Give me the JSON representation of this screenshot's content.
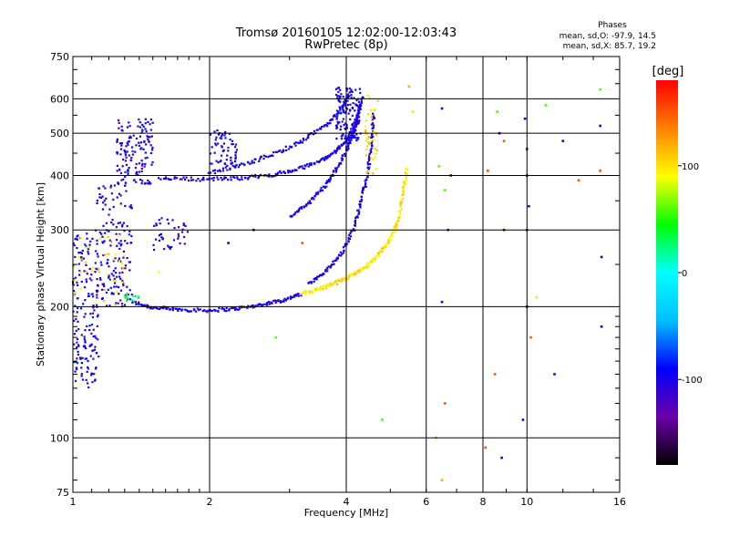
{
  "header": {
    "title": "Tromsø 20160105 12:02:00-12:03:43",
    "subtitle": "RwPretec (8p)"
  },
  "stats": {
    "heading": "Phases",
    "line_o": "mean, sd,O: -97.9, 14.5",
    "line_x": "mean, sd,X:  85.7, 19.2"
  },
  "colorbar": {
    "unit": "[deg]",
    "ticks": [
      {
        "value": 100,
        "label": "100"
      },
      {
        "value": 0,
        "label": "0"
      },
      {
        "value": -100,
        "label": "-100"
      }
    ],
    "range": [
      -180,
      180
    ],
    "palette": [
      "#000000",
      "#6a00a8",
      "#0000ff",
      "#00bfff",
      "#00ffff",
      "#00ff00",
      "#ffff00",
      "#ff8000",
      "#ff0000"
    ]
  },
  "chart_data": {
    "type": "scatter",
    "xlabel": "Frequency [MHz]",
    "ylabel": "Stationary phase Virtual Height [km]",
    "xscale": "log",
    "yscale": "log",
    "xlim": [
      1,
      16
    ],
    "ylim": [
      75,
      750
    ],
    "grid": true,
    "xticks": [
      {
        "value": 1,
        "label": "1"
      },
      {
        "value": 2,
        "label": "2"
      },
      {
        "value": 4,
        "label": "4"
      },
      {
        "value": 6,
        "label": "6"
      },
      {
        "value": 8,
        "label": "8"
      },
      {
        "value": 10,
        "label": "10"
      },
      {
        "value": 16,
        "label": "16"
      }
    ],
    "yticks": [
      {
        "value": 75,
        "label": "75"
      },
      {
        "value": 100,
        "label": "100"
      },
      {
        "value": 200,
        "label": "200"
      },
      {
        "value": 300,
        "label": "300"
      },
      {
        "value": 400,
        "label": "400"
      },
      {
        "value": 500,
        "label": "500"
      },
      {
        "value": 600,
        "label": "600"
      },
      {
        "value": 750,
        "label": "750"
      }
    ],
    "traces": [
      {
        "points": [
          [
            1.35,
            205
          ],
          [
            1.5,
            199
          ],
          [
            1.7,
            197
          ],
          [
            2.0,
            196
          ],
          [
            2.3,
            198
          ],
          [
            2.6,
            202
          ],
          [
            2.9,
            207
          ],
          [
            3.2,
            214
          ]
        ],
        "phase": -100
      },
      {
        "points": [
          [
            3.2,
            214
          ],
          [
            3.5,
            220
          ],
          [
            3.8,
            227
          ],
          [
            4.1,
            236
          ],
          [
            4.4,
            246
          ],
          [
            4.7,
            262
          ],
          [
            5.0,
            285
          ],
          [
            5.2,
            315
          ],
          [
            5.35,
            370
          ],
          [
            5.45,
            420
          ]
        ],
        "phase": 100
      },
      {
        "points": [
          [
            3.3,
            225
          ],
          [
            3.6,
            240
          ],
          [
            3.9,
            265
          ],
          [
            4.15,
            300
          ],
          [
            4.3,
            345
          ],
          [
            4.45,
            400
          ],
          [
            4.55,
            470
          ],
          [
            4.6,
            560
          ]
        ],
        "phase": -100
      },
      {
        "points": [
          [
            1.55,
            395
          ],
          [
            1.9,
            392
          ],
          [
            2.3,
            394
          ],
          [
            2.7,
            400
          ],
          [
            3.1,
            412
          ],
          [
            3.5,
            432
          ],
          [
            3.8,
            455
          ],
          [
            4.0,
            480
          ],
          [
            4.2,
            530
          ],
          [
            4.35,
            610
          ]
        ],
        "phase": -100
      },
      {
        "points": [
          [
            2.0,
            405
          ],
          [
            2.4,
            425
          ],
          [
            2.8,
            450
          ],
          [
            3.2,
            480
          ],
          [
            3.6,
            520
          ],
          [
            3.9,
            570
          ],
          [
            4.1,
            620
          ]
        ],
        "phase": -100
      },
      {
        "points": [
          [
            3.0,
            320
          ],
          [
            3.3,
            345
          ],
          [
            3.6,
            380
          ],
          [
            3.85,
            420
          ],
          [
            4.05,
            470
          ],
          [
            4.2,
            520
          ],
          [
            4.3,
            580
          ]
        ],
        "phase": -100
      }
    ],
    "clusters": [
      {
        "x": [
          1.0,
          1.14
        ],
        "y": [
          130,
          300
        ],
        "n": 170,
        "phase": -100
      },
      {
        "x": [
          1.12,
          1.35
        ],
        "y": [
          200,
          380
        ],
        "n": 160,
        "phase": -100
      },
      {
        "x": [
          1.25,
          1.5
        ],
        "y": [
          380,
          540
        ],
        "n": 140,
        "phase": -100
      },
      {
        "x": [
          1.5,
          1.8
        ],
        "y": [
          270,
          320
        ],
        "n": 40,
        "phase": -100
      },
      {
        "x": [
          2.0,
          2.3
        ],
        "y": [
          420,
          510
        ],
        "n": 60,
        "phase": -100
      },
      {
        "x": [
          3.8,
          4.3
        ],
        "y": [
          480,
          640
        ],
        "n": 120,
        "phase": -100
      },
      {
        "x": [
          4.4,
          4.7
        ],
        "y": [
          400,
          620
        ],
        "n": 40,
        "phase": 100
      },
      {
        "x": [
          1.0,
          1.3
        ],
        "y": [
          200,
          300
        ],
        "n": 40,
        "phase": 100
      },
      {
        "x": [
          1.3,
          1.4
        ],
        "y": [
          205,
          215
        ],
        "n": 12,
        "phase": 30
      }
    ],
    "scatter": [
      [
        6.5,
        570,
        -100
      ],
      [
        6.4,
        420,
        60
      ],
      [
        6.8,
        400,
        -100
      ],
      [
        6.6,
        370,
        60
      ],
      [
        6.7,
        300,
        -120
      ],
      [
        6.5,
        205,
        -100
      ],
      [
        6.3,
        100,
        60
      ],
      [
        6.5,
        80,
        120
      ],
      [
        5.5,
        640,
        120
      ],
      [
        5.6,
        560,
        100
      ],
      [
        8.2,
        410,
        150
      ],
      [
        8.6,
        560,
        60
      ],
      [
        8.7,
        500,
        -100
      ],
      [
        8.9,
        480,
        150
      ],
      [
        8.9,
        300,
        -100
      ],
      [
        9.9,
        540,
        -100
      ],
      [
        10.0,
        460,
        -100
      ],
      [
        10.0,
        400,
        -100
      ],
      [
        10.1,
        340,
        -100
      ],
      [
        10.0,
        300,
        -120
      ],
      [
        10.0,
        200,
        -100
      ],
      [
        10.2,
        170,
        150
      ],
      [
        8.8,
        90,
        -100
      ],
      [
        8.1,
        95,
        150
      ],
      [
        8.5,
        140,
        150
      ],
      [
        9.8,
        110,
        -100
      ],
      [
        11.0,
        580,
        60
      ],
      [
        12.0,
        480,
        -100
      ],
      [
        13.0,
        390,
        150
      ],
      [
        14.5,
        630,
        60
      ],
      [
        14.5,
        520,
        -100
      ],
      [
        14.5,
        410,
        150
      ],
      [
        14.6,
        260,
        -100
      ],
      [
        14.6,
        180,
        -100
      ],
      [
        11.5,
        140,
        -100
      ],
      [
        10.5,
        210,
        100
      ],
      [
        6.6,
        120,
        150
      ],
      [
        4.8,
        110,
        60
      ],
      [
        2.8,
        170,
        60
      ],
      [
        3.2,
        280,
        150
      ],
      [
        2.5,
        300,
        -100
      ],
      [
        2.2,
        280,
        -100
      ],
      [
        1.55,
        240,
        90
      ]
    ]
  }
}
